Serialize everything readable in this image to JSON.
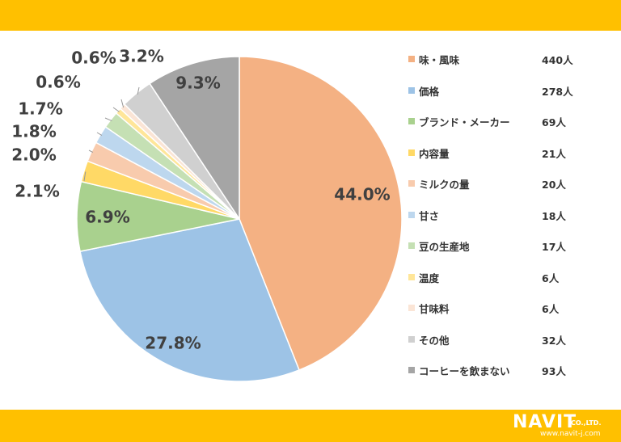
{
  "colors": {
    "band": "#FFC000"
  },
  "brand": {
    "name": "NAVIT",
    "suffix": "CO.,LTD.",
    "url": "www.navit-j.com"
  },
  "chart_data": {
    "type": "pie",
    "title": "",
    "legend_position": "right",
    "slices": [
      {
        "label": "味・風味",
        "count": "440人",
        "percent": 44.0,
        "percent_label": "44.0%",
        "color": "#F4B183"
      },
      {
        "label": "価格",
        "count": "278人",
        "percent": 27.8,
        "percent_label": "27.8%",
        "color": "#9DC3E6"
      },
      {
        "label": "ブランド・メーカー",
        "count": "69人",
        "percent": 6.9,
        "percent_label": "6.9%",
        "color": "#A9D18E"
      },
      {
        "label": "内容量",
        "count": "21人",
        "percent": 2.1,
        "percent_label": "2.1%",
        "color": "#FFD966"
      },
      {
        "label": "ミルクの量",
        "count": "20人",
        "percent": 2.0,
        "percent_label": "2.0%",
        "color": "#F8CBAD"
      },
      {
        "label": "甘さ",
        "count": "18人",
        "percent": 1.8,
        "percent_label": "1.8%",
        "color": "#BDD7EE"
      },
      {
        "label": "豆の生産地",
        "count": "17人",
        "percent": 1.7,
        "percent_label": "1.7%",
        "color": "#C5E0B4"
      },
      {
        "label": "温度",
        "count": "6人",
        "percent": 0.6,
        "percent_label": "0.6%",
        "color": "#FFE699"
      },
      {
        "label": "甘味料",
        "count": "6人",
        "percent": 0.6,
        "percent_label": "0.6%",
        "color": "#FBE5D6"
      },
      {
        "label": "その他",
        "count": "32人",
        "percent": 3.2,
        "percent_label": "3.2%",
        "color": "#D0D0D0"
      },
      {
        "label": "コーヒーを飲まない",
        "count": "93人",
        "percent": 9.3,
        "percent_label": "9.3%",
        "color": "#A5A5A5"
      }
    ]
  }
}
